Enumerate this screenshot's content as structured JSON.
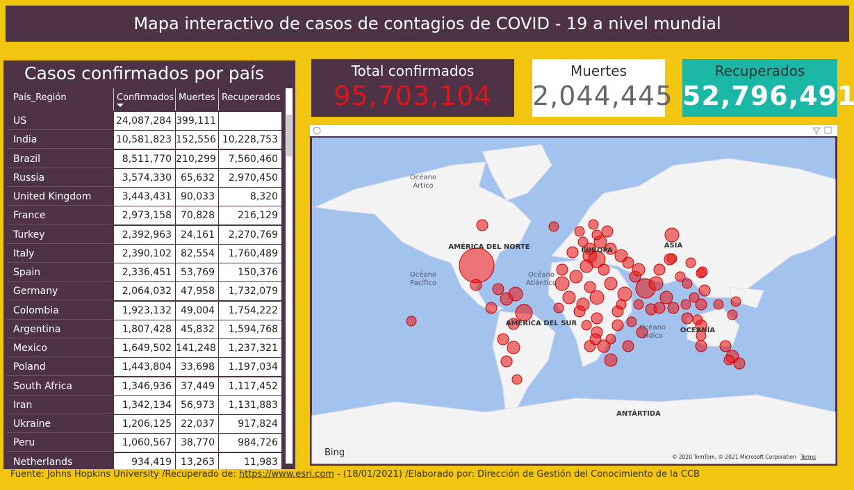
{
  "header": {
    "title": "Mapa interactivo de casos de contagios de COVID - 19 a nivel mundial"
  },
  "table": {
    "title": "Casos confirmados por país",
    "columns": [
      "País_Región",
      "Confirmados",
      "Muertes",
      "Recuperados"
    ],
    "rows": [
      [
        "US",
        "24,087,284",
        "399,111",
        null
      ],
      [
        "India",
        "10,581,823",
        "152,556",
        "10,228,753"
      ],
      [
        "Brazil",
        "8,511,770",
        "210,299",
        "7,560,460"
      ],
      [
        "Russia",
        "3,574,330",
        "65,632",
        "2,970,450"
      ],
      [
        "United Kingdom",
        "3,443,431",
        "90,033",
        "8,320"
      ],
      [
        "France",
        "2,973,158",
        "70,828",
        "216,129"
      ],
      [
        "Turkey",
        "2,392,963",
        "24,161",
        "2,270,769"
      ],
      [
        "Italy",
        "2,390,102",
        "82,554",
        "1,760,489"
      ],
      [
        "Spain",
        "2,336,451",
        "53,769",
        "150,376"
      ],
      [
        "Germany",
        "2,064,032",
        "47,958",
        "1,732,079"
      ],
      [
        "Colombia",
        "1,923,132",
        "49,004",
        "1,754,222"
      ],
      [
        "Argentina",
        "1,807,428",
        "45,832",
        "1,594,768"
      ],
      [
        "Mexico",
        "1,649,502",
        "141,248",
        "1,237,321"
      ],
      [
        "Poland",
        "1,443,804",
        "33,698",
        "1,197,034"
      ],
      [
        "South Africa",
        "1,346,936",
        "37,449",
        "1,117,452"
      ],
      [
        "Iran",
        "1,342,134",
        "56,973",
        "1,131,883"
      ],
      [
        "Ukraine",
        "1,206,125",
        "22,037",
        "917,824"
      ],
      [
        "Peru",
        "1,060,567",
        "38,770",
        "984,726"
      ],
      [
        "Netherlands",
        "934,419",
        "13,263",
        "11,983"
      ]
    ]
  },
  "cards": [
    {
      "label": "Total confirmados",
      "value": "95,703,104"
    },
    {
      "label": "Muertes",
      "value": "2,044,445"
    },
    {
      "label": "Recuperados",
      "value": "52,796,491"
    }
  ],
  "map": {
    "labels": [
      [
        "Océano",
        "Ártico"
      ],
      [
        "AMÉRICA DEL NORTE"
      ],
      [
        "Océano",
        "Pacífico"
      ],
      [
        "Océano",
        "Atlántico"
      ],
      [
        "EUROPA"
      ],
      [
        "ASIA"
      ],
      [
        "AMÉRICA DEL SUR"
      ],
      [
        "Océano",
        "Índico"
      ],
      [
        "OCEANÍA"
      ],
      [
        "ANTÁRTIDA"
      ]
    ],
    "provider": "Bing",
    "copyright": "© 2020 TomTom, © 2021 Microsoft Corporation",
    "terms": "Terms"
  },
  "footer": {
    "prefix": "Fuente: Johns Hopkins University /Recuperado de: ",
    "link": "https://www.esri.com",
    "suffix": " - (18/01/2021) /Elaborado por: Dirección de Gestión del Conocimiento de la CCB"
  }
}
